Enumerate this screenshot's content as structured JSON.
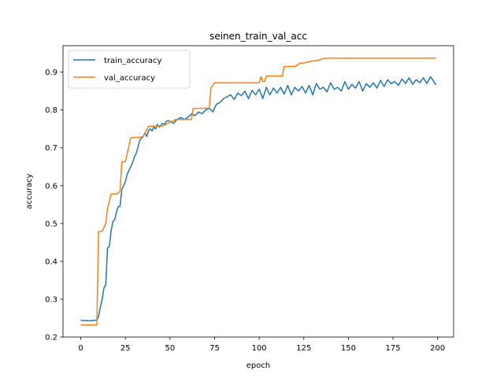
{
  "chart_data": {
    "type": "line",
    "title": "seinen_train_val_acc",
    "xlabel": "epoch",
    "ylabel": "accuracy",
    "xlim": [
      -9.95,
      208.95
    ],
    "ylim": [
      0.2,
      0.97
    ],
    "xticks": [
      0,
      25,
      50,
      75,
      100,
      125,
      150,
      175,
      200
    ],
    "yticks": [
      0.2,
      0.3,
      0.4,
      0.5,
      0.6,
      0.7,
      0.8,
      0.9
    ],
    "ytick_labels": [
      "0.2",
      "0.3",
      "0.4",
      "0.5",
      "0.6",
      "0.7",
      "0.8",
      "0.9"
    ],
    "grid": false,
    "legend_position": "upper-left",
    "series": [
      {
        "name": "train_accuracy",
        "color": "#1f77b4",
        "x": [
          0,
          5,
          9,
          10,
          11,
          12,
          13,
          14,
          15,
          16,
          17,
          18,
          19,
          20,
          21,
          22,
          23,
          24,
          25,
          26,
          27,
          28,
          29,
          30,
          31,
          32,
          33,
          34,
          35,
          36,
          37,
          38,
          39,
          40,
          41,
          42,
          43,
          44,
          45,
          46,
          47,
          48,
          49,
          50,
          52,
          54,
          56,
          58,
          60,
          62,
          64,
          66,
          68,
          70,
          72,
          74,
          76,
          78,
          80,
          82,
          84,
          86,
          88,
          90,
          92,
          94,
          96,
          98,
          100,
          102,
          104,
          106,
          108,
          110,
          112,
          114,
          116,
          118,
          120,
          122,
          124,
          126,
          128,
          130,
          132,
          134,
          136,
          138,
          140,
          142,
          144,
          146,
          148,
          150,
          152,
          154,
          156,
          158,
          160,
          162,
          164,
          166,
          168,
          170,
          172,
          174,
          176,
          178,
          180,
          182,
          184,
          186,
          188,
          190,
          192,
          194,
          196,
          198,
          199
        ],
        "values": [
          0.244,
          0.243,
          0.245,
          0.255,
          0.28,
          0.3,
          0.33,
          0.338,
          0.435,
          0.44,
          0.48,
          0.505,
          0.51,
          0.53,
          0.545,
          0.545,
          0.59,
          0.6,
          0.61,
          0.63,
          0.64,
          0.65,
          0.66,
          0.675,
          0.685,
          0.7,
          0.72,
          0.725,
          0.73,
          0.74,
          0.73,
          0.745,
          0.75,
          0.745,
          0.755,
          0.75,
          0.762,
          0.755,
          0.76,
          0.765,
          0.762,
          0.77,
          0.772,
          0.77,
          0.765,
          0.775,
          0.78,
          0.775,
          0.78,
          0.79,
          0.785,
          0.795,
          0.79,
          0.8,
          0.805,
          0.795,
          0.815,
          0.82,
          0.83,
          0.835,
          0.84,
          0.828,
          0.845,
          0.838,
          0.85,
          0.83,
          0.852,
          0.84,
          0.855,
          0.83,
          0.86,
          0.84,
          0.858,
          0.845,
          0.86,
          0.842,
          0.865,
          0.84,
          0.86,
          0.85,
          0.862,
          0.845,
          0.865,
          0.84,
          0.87,
          0.855,
          0.86,
          0.848,
          0.872,
          0.855,
          0.86,
          0.85,
          0.875,
          0.855,
          0.868,
          0.858,
          0.875,
          0.85,
          0.87,
          0.86,
          0.872,
          0.858,
          0.878,
          0.862,
          0.88,
          0.87,
          0.875,
          0.865,
          0.882,
          0.87,
          0.885,
          0.868,
          0.88,
          0.872,
          0.885,
          0.87,
          0.888,
          0.875,
          0.866
        ]
      },
      {
        "name": "val_accuracy",
        "color": "#ff7f0e",
        "x": [
          0,
          9,
          10,
          12,
          13,
          14,
          15,
          17,
          20,
          22,
          23,
          25,
          28,
          29,
          33,
          35,
          38,
          45,
          46,
          52,
          53,
          62,
          63,
          72,
          73,
          75,
          100,
          101,
          102,
          103,
          104,
          110,
          113,
          114,
          118,
          120,
          123,
          125,
          130,
          132,
          137,
          199
        ],
        "values": [
          0.232,
          0.232,
          0.478,
          0.48,
          0.49,
          0.5,
          0.54,
          0.578,
          0.578,
          0.585,
          0.663,
          0.663,
          0.726,
          0.727,
          0.728,
          0.73,
          0.757,
          0.758,
          0.758,
          0.772,
          0.775,
          0.775,
          0.804,
          0.805,
          0.859,
          0.872,
          0.872,
          0.888,
          0.875,
          0.875,
          0.89,
          0.89,
          0.89,
          0.915,
          0.915,
          0.915,
          0.924,
          0.924,
          0.93,
          0.93,
          0.937,
          0.937
        ]
      }
    ]
  }
}
